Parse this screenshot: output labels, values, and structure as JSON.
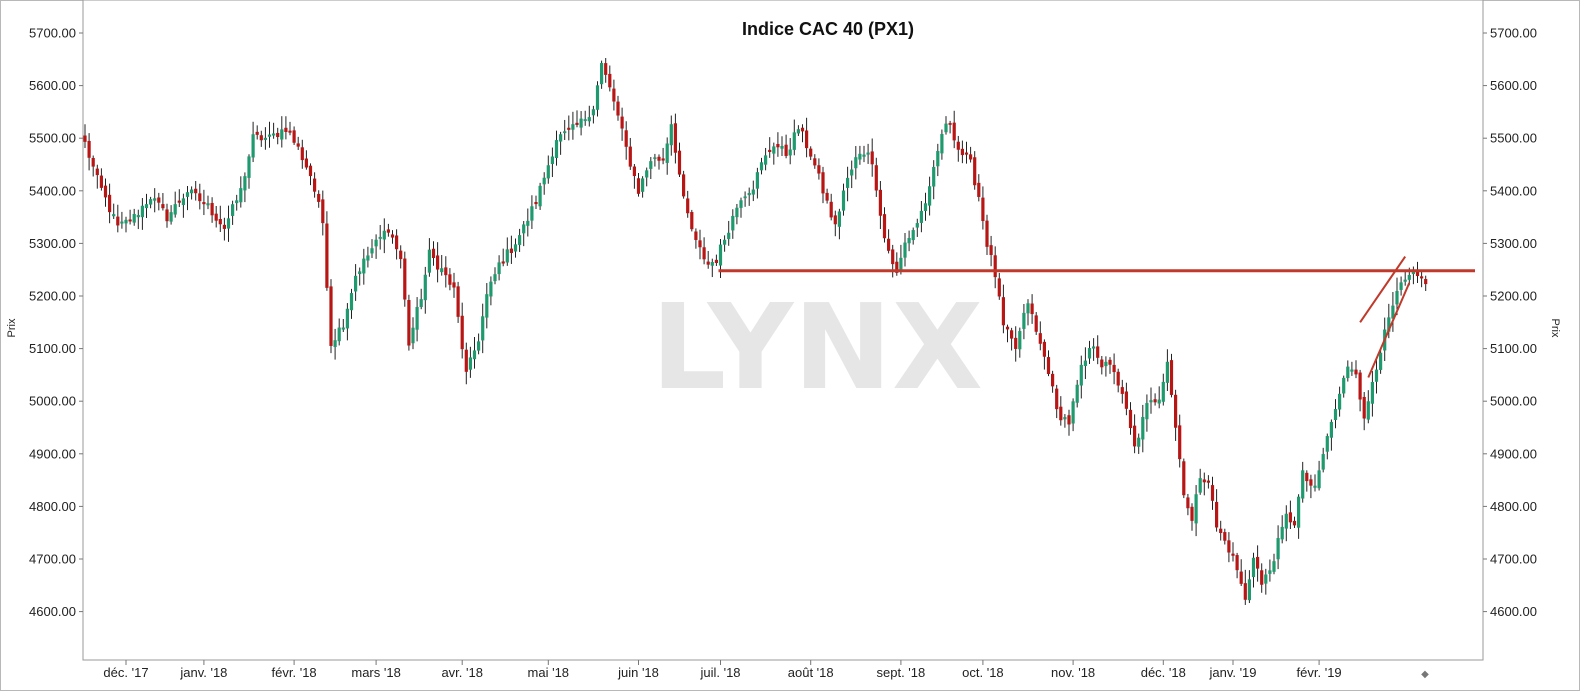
{
  "chart_data": {
    "type": "candlestick",
    "title": "Indice CAC 40 (PX1)",
    "ylabel_left": "Prix",
    "ylabel_right": "Prix",
    "watermark": "LYNX",
    "ylim": [
      4530,
      5760
    ],
    "y_ticks": [
      4600,
      4700,
      4800,
      4900,
      5000,
      5100,
      5200,
      5300,
      5400,
      5500,
      5600,
      5700
    ],
    "y_tick_labels": [
      "4600.00",
      "4700.00",
      "4800.00",
      "4900.00",
      "5000.00",
      "5100.00",
      "5200.00",
      "5300.00",
      "5400.00",
      "5500.00",
      "5600.00",
      "5700.00"
    ],
    "x_labels": [
      "déc. '17",
      "janv. '18",
      "févr. '18",
      "mars '18",
      "avr. '18",
      "mai '18",
      "juin '18",
      "juil. '18",
      "août '18",
      "sept. '18",
      "oct. '18",
      "nov. '18",
      "déc. '18",
      "janv. '19",
      "févr. '19"
    ],
    "x_label_sessions": [
      10,
      29,
      51,
      71,
      92,
      113,
      135,
      155,
      177,
      199,
      219,
      241,
      263,
      280,
      301
    ],
    "sessions": 328,
    "up_color": "#1e9a6e",
    "down_color": "#b81515",
    "wick_color": "#222222",
    "grid": false,
    "legend": "none",
    "close_anchors": [
      [
        0,
        5490
      ],
      [
        3,
        5420
      ],
      [
        8,
        5330
      ],
      [
        12,
        5350
      ],
      [
        16,
        5390
      ],
      [
        20,
        5350
      ],
      [
        25,
        5400
      ],
      [
        30,
        5370
      ],
      [
        34,
        5330
      ],
      [
        38,
        5400
      ],
      [
        41,
        5500
      ],
      [
        45,
        5500
      ],
      [
        49,
        5520
      ],
      [
        52,
        5480
      ],
      [
        55,
        5430
      ],
      [
        58,
        5340
      ],
      [
        60,
        5110
      ],
      [
        63,
        5150
      ],
      [
        66,
        5240
      ],
      [
        70,
        5290
      ],
      [
        74,
        5330
      ],
      [
        77,
        5270
      ],
      [
        79,
        5110
      ],
      [
        82,
        5200
      ],
      [
        84,
        5280
      ],
      [
        87,
        5250
      ],
      [
        90,
        5210
      ],
      [
        93,
        5050
      ],
      [
        96,
        5120
      ],
      [
        98,
        5200
      ],
      [
        101,
        5260
      ],
      [
        104,
        5290
      ],
      [
        107,
        5330
      ],
      [
        110,
        5380
      ],
      [
        113,
        5450
      ],
      [
        115,
        5500
      ],
      [
        118,
        5510
      ],
      [
        121,
        5530
      ],
      [
        124,
        5560
      ],
      [
        126,
        5640
      ],
      [
        129,
        5570
      ],
      [
        132,
        5480
      ],
      [
        135,
        5400
      ],
      [
        138,
        5460
      ],
      [
        141,
        5460
      ],
      [
        143,
        5530
      ],
      [
        146,
        5380
      ],
      [
        149,
        5300
      ],
      [
        152,
        5260
      ],
      [
        154,
        5270
      ],
      [
        157,
        5330
      ],
      [
        160,
        5390
      ],
      [
        163,
        5410
      ],
      [
        165,
        5450
      ],
      [
        168,
        5490
      ],
      [
        171,
        5470
      ],
      [
        174,
        5520
      ],
      [
        177,
        5470
      ],
      [
        180,
        5400
      ],
      [
        183,
        5330
      ],
      [
        185,
        5400
      ],
      [
        188,
        5460
      ],
      [
        191,
        5480
      ],
      [
        193,
        5410
      ],
      [
        195,
        5310
      ],
      [
        198,
        5240
      ],
      [
        200,
        5300
      ],
      [
        203,
        5340
      ],
      [
        206,
        5400
      ],
      [
        209,
        5510
      ],
      [
        211,
        5530
      ],
      [
        213,
        5480
      ],
      [
        216,
        5450
      ],
      [
        218,
        5390
      ],
      [
        220,
        5300
      ],
      [
        222,
        5240
      ],
      [
        224,
        5140
      ],
      [
        227,
        5100
      ],
      [
        230,
        5190
      ],
      [
        232,
        5130
      ],
      [
        235,
        5060
      ],
      [
        237,
        4980
      ],
      [
        240,
        4960
      ],
      [
        243,
        5060
      ],
      [
        246,
        5110
      ],
      [
        248,
        5070
      ],
      [
        251,
        5060
      ],
      [
        254,
        4980
      ],
      [
        256,
        4910
      ],
      [
        259,
        4990
      ],
      [
        262,
        5010
      ],
      [
        264,
        5080
      ],
      [
        266,
        4950
      ],
      [
        268,
        4830
      ],
      [
        270,
        4770
      ],
      [
        272,
        4860
      ],
      [
        274,
        4850
      ],
      [
        276,
        4760
      ],
      [
        279,
        4720
      ],
      [
        281,
        4680
      ],
      [
        283,
        4620
      ],
      [
        285,
        4710
      ],
      [
        287,
        4650
      ],
      [
        289,
        4680
      ],
      [
        291,
        4730
      ],
      [
        293,
        4780
      ],
      [
        295,
        4770
      ],
      [
        297,
        4860
      ],
      [
        300,
        4830
      ],
      [
        302,
        4900
      ],
      [
        304,
        4960
      ],
      [
        306,
        5010
      ],
      [
        308,
        5070
      ],
      [
        310,
        5060
      ],
      [
        312,
        4960
      ],
      [
        314,
        5040
      ],
      [
        316,
        5100
      ],
      [
        319,
        5180
      ],
      [
        321,
        5220
      ],
      [
        324,
        5240
      ],
      [
        326,
        5230
      ],
      [
        327,
        5230
      ]
    ],
    "annotations": {
      "support_level": 5248,
      "support_from_session": 155,
      "channel_upper": [
        [
          311,
          5150
        ],
        [
          322,
          5275
        ]
      ],
      "channel_lower": [
        [
          313,
          5045
        ],
        [
          323,
          5225
        ]
      ]
    }
  }
}
